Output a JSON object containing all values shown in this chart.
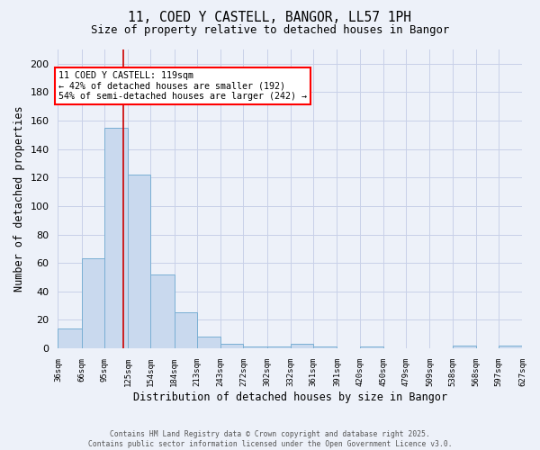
{
  "title_line1": "11, COED Y CASTELL, BANGOR, LL57 1PH",
  "title_line2": "Size of property relative to detached houses in Bangor",
  "xlabel": "Distribution of detached houses by size in Bangor",
  "ylabel": "Number of detached properties",
  "bin_edges": [
    36,
    66,
    95,
    125,
    154,
    184,
    213,
    243,
    272,
    302,
    332,
    361,
    391,
    420,
    450,
    479,
    509,
    538,
    568,
    597,
    627
  ],
  "bar_values": [
    14,
    63,
    155,
    122,
    52,
    25,
    8,
    3,
    1,
    1,
    3,
    1,
    0,
    1,
    0,
    0,
    0,
    2,
    0,
    2
  ],
  "bar_color": "#c9d9ee",
  "bar_edge_color": "#7aafd4",
  "grid_color": "#c8d0e8",
  "background_color": "#edf1f9",
  "annotation_text": "11 COED Y CASTELL: 119sqm\n← 42% of detached houses are smaller (192)\n54% of semi-detached houses are larger (242) →",
  "property_sqm": 119,
  "red_line_color": "#cc0000",
  "ylim": [
    0,
    210
  ],
  "yticks": [
    0,
    20,
    40,
    60,
    80,
    100,
    120,
    140,
    160,
    180,
    200
  ],
  "footer_line1": "Contains HM Land Registry data © Crown copyright and database right 2025.",
  "footer_line2": "Contains public sector information licensed under the Open Government Licence v3.0."
}
